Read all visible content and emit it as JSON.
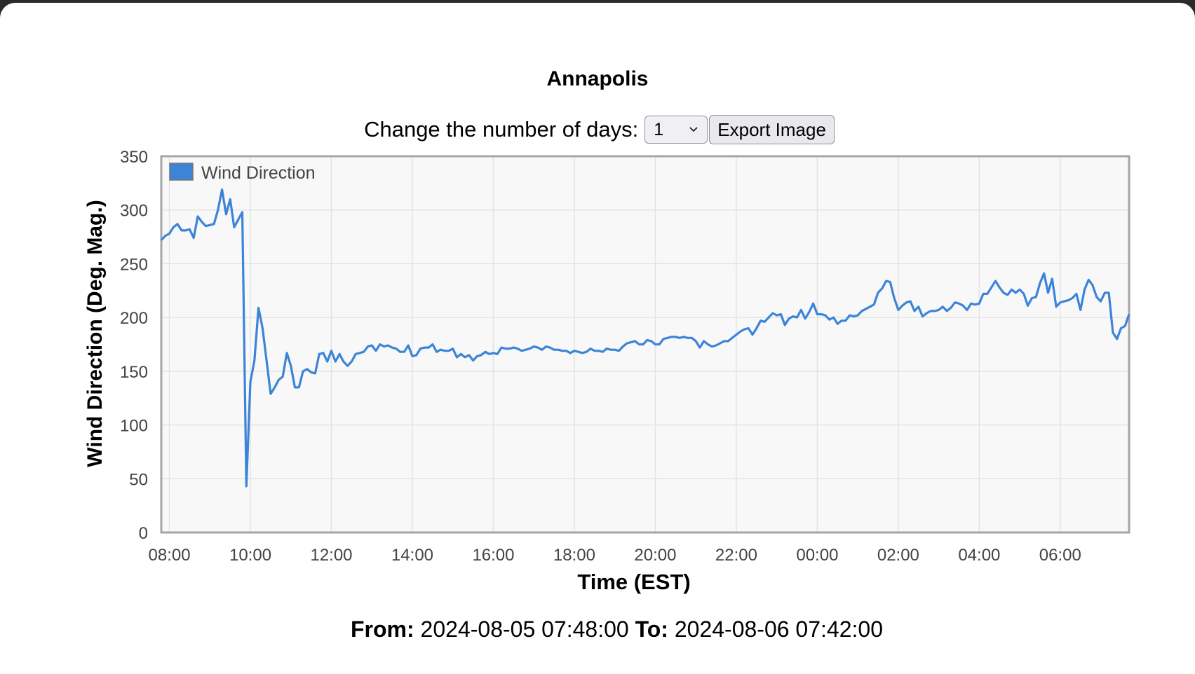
{
  "page": {
    "title": "Annapolis",
    "controls_label": "Change the number of days:",
    "days_value": "1",
    "export_label": "Export Image",
    "from_label": "From:",
    "from_value": "2024-08-05 07:48:00",
    "to_label": "To:",
    "to_value": "2024-08-06 07:42:00"
  },
  "chart_data": {
    "type": "line",
    "title": "",
    "xlabel": "Time (EST)",
    "ylabel": "Wind Direction (Deg. Mag.)",
    "ylim": [
      0,
      350
    ],
    "yticks": [
      0,
      50,
      100,
      150,
      200,
      250,
      300,
      350
    ],
    "xlim": [
      "2024-08-05 07:48",
      "2024-08-06 07:42"
    ],
    "xticks": [
      "08:00",
      "10:00",
      "12:00",
      "14:00",
      "16:00",
      "18:00",
      "20:00",
      "22:00",
      "00:00",
      "02:00",
      "04:00",
      "06:00"
    ],
    "grid": true,
    "legend": "top-left",
    "color": "#3c84d8",
    "series": [
      {
        "name": "Wind Direction",
        "points": [
          [
            "2024-08-05 07:48",
            272
          ],
          [
            "2024-08-05 07:54",
            276
          ],
          [
            "2024-08-05 08:00",
            278
          ],
          [
            "2024-08-05 08:06",
            284
          ],
          [
            "2024-08-05 08:12",
            287
          ],
          [
            "2024-08-05 08:18",
            281
          ],
          [
            "2024-08-05 08:24",
            281
          ],
          [
            "2024-08-05 08:30",
            282
          ],
          [
            "2024-08-05 08:36",
            274
          ],
          [
            "2024-08-05 08:42",
            294
          ],
          [
            "2024-08-05 08:48",
            289
          ],
          [
            "2024-08-05 08:54",
            285
          ],
          [
            "2024-08-05 09:00",
            286
          ],
          [
            "2024-08-05 09:06",
            287
          ],
          [
            "2024-08-05 09:12",
            300
          ],
          [
            "2024-08-05 09:18",
            319
          ],
          [
            "2024-08-05 09:24",
            296
          ],
          [
            "2024-08-05 09:30",
            310
          ],
          [
            "2024-08-05 09:36",
            284
          ],
          [
            "2024-08-05 09:42",
            291
          ],
          [
            "2024-08-05 09:48",
            298
          ],
          [
            "2024-08-05 09:54",
            43
          ],
          [
            "2024-08-05 10:00",
            140
          ],
          [
            "2024-08-05 10:06",
            160
          ],
          [
            "2024-08-05 10:12",
            209
          ],
          [
            "2024-08-05 10:18",
            190
          ],
          [
            "2024-08-05 10:24",
            160
          ],
          [
            "2024-08-05 10:30",
            129
          ],
          [
            "2024-08-05 10:36",
            135
          ],
          [
            "2024-08-05 10:42",
            142
          ],
          [
            "2024-08-05 10:48",
            145
          ],
          [
            "2024-08-05 10:54",
            167
          ],
          [
            "2024-08-05 11:00",
            155
          ],
          [
            "2024-08-05 11:06",
            135
          ],
          [
            "2024-08-05 11:12",
            135
          ],
          [
            "2024-08-05 11:18",
            150
          ],
          [
            "2024-08-05 11:24",
            152
          ],
          [
            "2024-08-05 11:30",
            149
          ],
          [
            "2024-08-05 11:36",
            148
          ],
          [
            "2024-08-05 11:42",
            166
          ],
          [
            "2024-08-05 11:48",
            167
          ],
          [
            "2024-08-05 11:54",
            159
          ],
          [
            "2024-08-05 12:00",
            169
          ],
          [
            "2024-08-05 12:06",
            159
          ],
          [
            "2024-08-05 12:12",
            166
          ],
          [
            "2024-08-05 12:18",
            159
          ],
          [
            "2024-08-05 12:24",
            155
          ],
          [
            "2024-08-05 12:30",
            159
          ],
          [
            "2024-08-05 12:36",
            166
          ],
          [
            "2024-08-05 12:42",
            167
          ],
          [
            "2024-08-05 12:48",
            168
          ],
          [
            "2024-08-05 12:54",
            173
          ],
          [
            "2024-08-05 13:00",
            174
          ],
          [
            "2024-08-05 13:06",
            169
          ],
          [
            "2024-08-05 13:12",
            175
          ],
          [
            "2024-08-05 13:18",
            173
          ],
          [
            "2024-08-05 13:24",
            174
          ],
          [
            "2024-08-05 13:30",
            172
          ],
          [
            "2024-08-05 13:36",
            171
          ],
          [
            "2024-08-05 13:42",
            168
          ],
          [
            "2024-08-05 13:48",
            168
          ],
          [
            "2024-08-05 13:54",
            174
          ],
          [
            "2024-08-05 14:00",
            164
          ],
          [
            "2024-08-05 14:06",
            165
          ],
          [
            "2024-08-05 14:12",
            171
          ],
          [
            "2024-08-05 14:18",
            172
          ],
          [
            "2024-08-05 14:24",
            172
          ],
          [
            "2024-08-05 14:30",
            175
          ],
          [
            "2024-08-05 14:36",
            168
          ],
          [
            "2024-08-05 14:42",
            170
          ],
          [
            "2024-08-05 14:48",
            169
          ],
          [
            "2024-08-05 14:54",
            169
          ],
          [
            "2024-08-05 15:00",
            171
          ],
          [
            "2024-08-05 15:06",
            163
          ],
          [
            "2024-08-05 15:12",
            166
          ],
          [
            "2024-08-05 15:18",
            163
          ],
          [
            "2024-08-05 15:24",
            165
          ],
          [
            "2024-08-05 15:30",
            160
          ],
          [
            "2024-08-05 15:36",
            164
          ],
          [
            "2024-08-05 15:42",
            165
          ],
          [
            "2024-08-05 15:48",
            168
          ],
          [
            "2024-08-05 15:54",
            166
          ],
          [
            "2024-08-05 16:00",
            167
          ],
          [
            "2024-08-05 16:06",
            166
          ],
          [
            "2024-08-05 16:12",
            172
          ],
          [
            "2024-08-05 16:18",
            171
          ],
          [
            "2024-08-05 16:24",
            171
          ],
          [
            "2024-08-05 16:30",
            172
          ],
          [
            "2024-08-05 16:36",
            171
          ],
          [
            "2024-08-05 16:42",
            169
          ],
          [
            "2024-08-05 16:48",
            170
          ],
          [
            "2024-08-05 16:54",
            171
          ],
          [
            "2024-08-05 17:00",
            173
          ],
          [
            "2024-08-05 17:06",
            172
          ],
          [
            "2024-08-05 17:12",
            170
          ],
          [
            "2024-08-05 17:18",
            173
          ],
          [
            "2024-08-05 17:24",
            172
          ],
          [
            "2024-08-05 17:30",
            170
          ],
          [
            "2024-08-05 17:36",
            170
          ],
          [
            "2024-08-05 17:42",
            169
          ],
          [
            "2024-08-05 17:48",
            169
          ],
          [
            "2024-08-05 17:54",
            167
          ],
          [
            "2024-08-05 18:00",
            169
          ],
          [
            "2024-08-05 18:06",
            168
          ],
          [
            "2024-08-05 18:12",
            167
          ],
          [
            "2024-08-05 18:18",
            168
          ],
          [
            "2024-08-05 18:24",
            171
          ],
          [
            "2024-08-05 18:30",
            169
          ],
          [
            "2024-08-05 18:36",
            169
          ],
          [
            "2024-08-05 18:42",
            168
          ],
          [
            "2024-08-05 18:48",
            171
          ],
          [
            "2024-08-05 18:54",
            170
          ],
          [
            "2024-08-05 19:00",
            170
          ],
          [
            "2024-08-05 19:06",
            169
          ],
          [
            "2024-08-05 19:12",
            173
          ],
          [
            "2024-08-05 19:18",
            176
          ],
          [
            "2024-08-05 19:24",
            177
          ],
          [
            "2024-08-05 19:30",
            178
          ],
          [
            "2024-08-05 19:36",
            175
          ],
          [
            "2024-08-05 19:42",
            175
          ],
          [
            "2024-08-05 19:48",
            179
          ],
          [
            "2024-08-05 19:54",
            178
          ],
          [
            "2024-08-05 20:00",
            175
          ],
          [
            "2024-08-05 20:06",
            175
          ],
          [
            "2024-08-05 20:12",
            180
          ],
          [
            "2024-08-05 20:18",
            181
          ],
          [
            "2024-08-05 20:24",
            182
          ],
          [
            "2024-08-05 20:30",
            182
          ],
          [
            "2024-08-05 20:36",
            181
          ],
          [
            "2024-08-05 20:42",
            182
          ],
          [
            "2024-08-05 20:48",
            181
          ],
          [
            "2024-08-05 20:54",
            181
          ],
          [
            "2024-08-05 21:00",
            178
          ],
          [
            "2024-08-05 21:06",
            172
          ],
          [
            "2024-08-05 21:12",
            178
          ],
          [
            "2024-08-05 21:18",
            175
          ],
          [
            "2024-08-05 21:24",
            173
          ],
          [
            "2024-08-05 21:30",
            174
          ],
          [
            "2024-08-05 21:36",
            176
          ],
          [
            "2024-08-05 21:42",
            178
          ],
          [
            "2024-08-05 21:48",
            178
          ],
          [
            "2024-08-05 21:54",
            181
          ],
          [
            "2024-08-05 22:00",
            184
          ],
          [
            "2024-08-05 22:06",
            187
          ],
          [
            "2024-08-05 22:12",
            189
          ],
          [
            "2024-08-05 22:18",
            190
          ],
          [
            "2024-08-05 22:24",
            184
          ],
          [
            "2024-08-05 22:30",
            190
          ],
          [
            "2024-08-05 22:36",
            197
          ],
          [
            "2024-08-05 22:42",
            196
          ],
          [
            "2024-08-05 22:48",
            200
          ],
          [
            "2024-08-05 22:54",
            204
          ],
          [
            "2024-08-05 23:00",
            202
          ],
          [
            "2024-08-05 23:06",
            203
          ],
          [
            "2024-08-05 23:12",
            193
          ],
          [
            "2024-08-05 23:18",
            199
          ],
          [
            "2024-08-05 23:24",
            201
          ],
          [
            "2024-08-05 23:30",
            200
          ],
          [
            "2024-08-05 23:36",
            207
          ],
          [
            "2024-08-05 23:42",
            199
          ],
          [
            "2024-08-05 23:48",
            205
          ],
          [
            "2024-08-05 23:54",
            213
          ],
          [
            "2024-08-06 00:00",
            203
          ],
          [
            "2024-08-06 00:06",
            203
          ],
          [
            "2024-08-06 00:12",
            202
          ],
          [
            "2024-08-06 00:18",
            198
          ],
          [
            "2024-08-06 00:24",
            200
          ],
          [
            "2024-08-06 00:30",
            194
          ],
          [
            "2024-08-06 00:36",
            197
          ],
          [
            "2024-08-06 00:42",
            197
          ],
          [
            "2024-08-06 00:48",
            202
          ],
          [
            "2024-08-06 00:54",
            201
          ],
          [
            "2024-08-06 01:00",
            202
          ],
          [
            "2024-08-06 01:06",
            206
          ],
          [
            "2024-08-06 01:12",
            208
          ],
          [
            "2024-08-06 01:18",
            210
          ],
          [
            "2024-08-06 01:24",
            212
          ],
          [
            "2024-08-06 01:30",
            223
          ],
          [
            "2024-08-06 01:36",
            227
          ],
          [
            "2024-08-06 01:42",
            234
          ],
          [
            "2024-08-06 01:48",
            233
          ],
          [
            "2024-08-06 01:54",
            218
          ],
          [
            "2024-08-06 02:00",
            207
          ],
          [
            "2024-08-06 02:06",
            211
          ],
          [
            "2024-08-06 02:12",
            214
          ],
          [
            "2024-08-06 02:18",
            215
          ],
          [
            "2024-08-06 02:24",
            206
          ],
          [
            "2024-08-06 02:30",
            210
          ],
          [
            "2024-08-06 02:36",
            201
          ],
          [
            "2024-08-06 02:42",
            204
          ],
          [
            "2024-08-06 02:48",
            206
          ],
          [
            "2024-08-06 02:54",
            206
          ],
          [
            "2024-08-06 03:00",
            207
          ],
          [
            "2024-08-06 03:06",
            210
          ],
          [
            "2024-08-06 03:12",
            206
          ],
          [
            "2024-08-06 03:18",
            209
          ],
          [
            "2024-08-06 03:24",
            214
          ],
          [
            "2024-08-06 03:30",
            213
          ],
          [
            "2024-08-06 03:36",
            211
          ],
          [
            "2024-08-06 03:42",
            207
          ],
          [
            "2024-08-06 03:48",
            213
          ],
          [
            "2024-08-06 03:54",
            212
          ],
          [
            "2024-08-06 04:00",
            213
          ],
          [
            "2024-08-06 04:06",
            222
          ],
          [
            "2024-08-06 04:12",
            222
          ],
          [
            "2024-08-06 04:18",
            228
          ],
          [
            "2024-08-06 04:24",
            234
          ],
          [
            "2024-08-06 04:30",
            228
          ],
          [
            "2024-08-06 04:36",
            223
          ],
          [
            "2024-08-06 04:42",
            221
          ],
          [
            "2024-08-06 04:48",
            226
          ],
          [
            "2024-08-06 04:54",
            223
          ],
          [
            "2024-08-06 05:00",
            226
          ],
          [
            "2024-08-06 05:06",
            222
          ],
          [
            "2024-08-06 05:12",
            211
          ],
          [
            "2024-08-06 05:18",
            218
          ],
          [
            "2024-08-06 05:24",
            219
          ],
          [
            "2024-08-06 05:30",
            232
          ],
          [
            "2024-08-06 05:36",
            241
          ],
          [
            "2024-08-06 05:42",
            223
          ],
          [
            "2024-08-06 05:48",
            236
          ],
          [
            "2024-08-06 05:54",
            210
          ],
          [
            "2024-08-06 06:00",
            214
          ],
          [
            "2024-08-06 06:06",
            215
          ],
          [
            "2024-08-06 06:12",
            216
          ],
          [
            "2024-08-06 06:18",
            218
          ],
          [
            "2024-08-06 06:24",
            222
          ],
          [
            "2024-08-06 06:30",
            207
          ],
          [
            "2024-08-06 06:36",
            226
          ],
          [
            "2024-08-06 06:42",
            235
          ],
          [
            "2024-08-06 06:48",
            230
          ],
          [
            "2024-08-06 06:54",
            219
          ],
          [
            "2024-08-06 07:00",
            215
          ],
          [
            "2024-08-06 07:06",
            223
          ],
          [
            "2024-08-06 07:12",
            223
          ],
          [
            "2024-08-06 07:18",
            186
          ],
          [
            "2024-08-06 07:24",
            180
          ],
          [
            "2024-08-06 07:30",
            190
          ],
          [
            "2024-08-06 07:36",
            192
          ],
          [
            "2024-08-06 07:42",
            203
          ]
        ]
      }
    ]
  }
}
